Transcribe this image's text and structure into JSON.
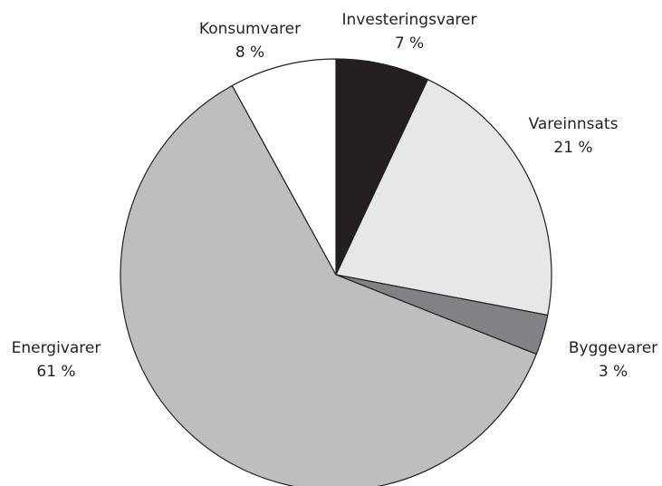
{
  "chart_data": {
    "type": "pie",
    "categories": [
      "Investeringsvarer",
      "Vareinnsats",
      "Byggevarer",
      "Energivarer",
      "Konsumvarer"
    ],
    "values": [
      7,
      21,
      3,
      61,
      8
    ],
    "value_labels": [
      "7 %",
      "21 %",
      "3 %",
      "61 %",
      "8 %"
    ],
    "colors": [
      "#231f20",
      "#e6e7e8",
      "#808285",
      "#bcbec0",
      "#ffffff"
    ]
  }
}
